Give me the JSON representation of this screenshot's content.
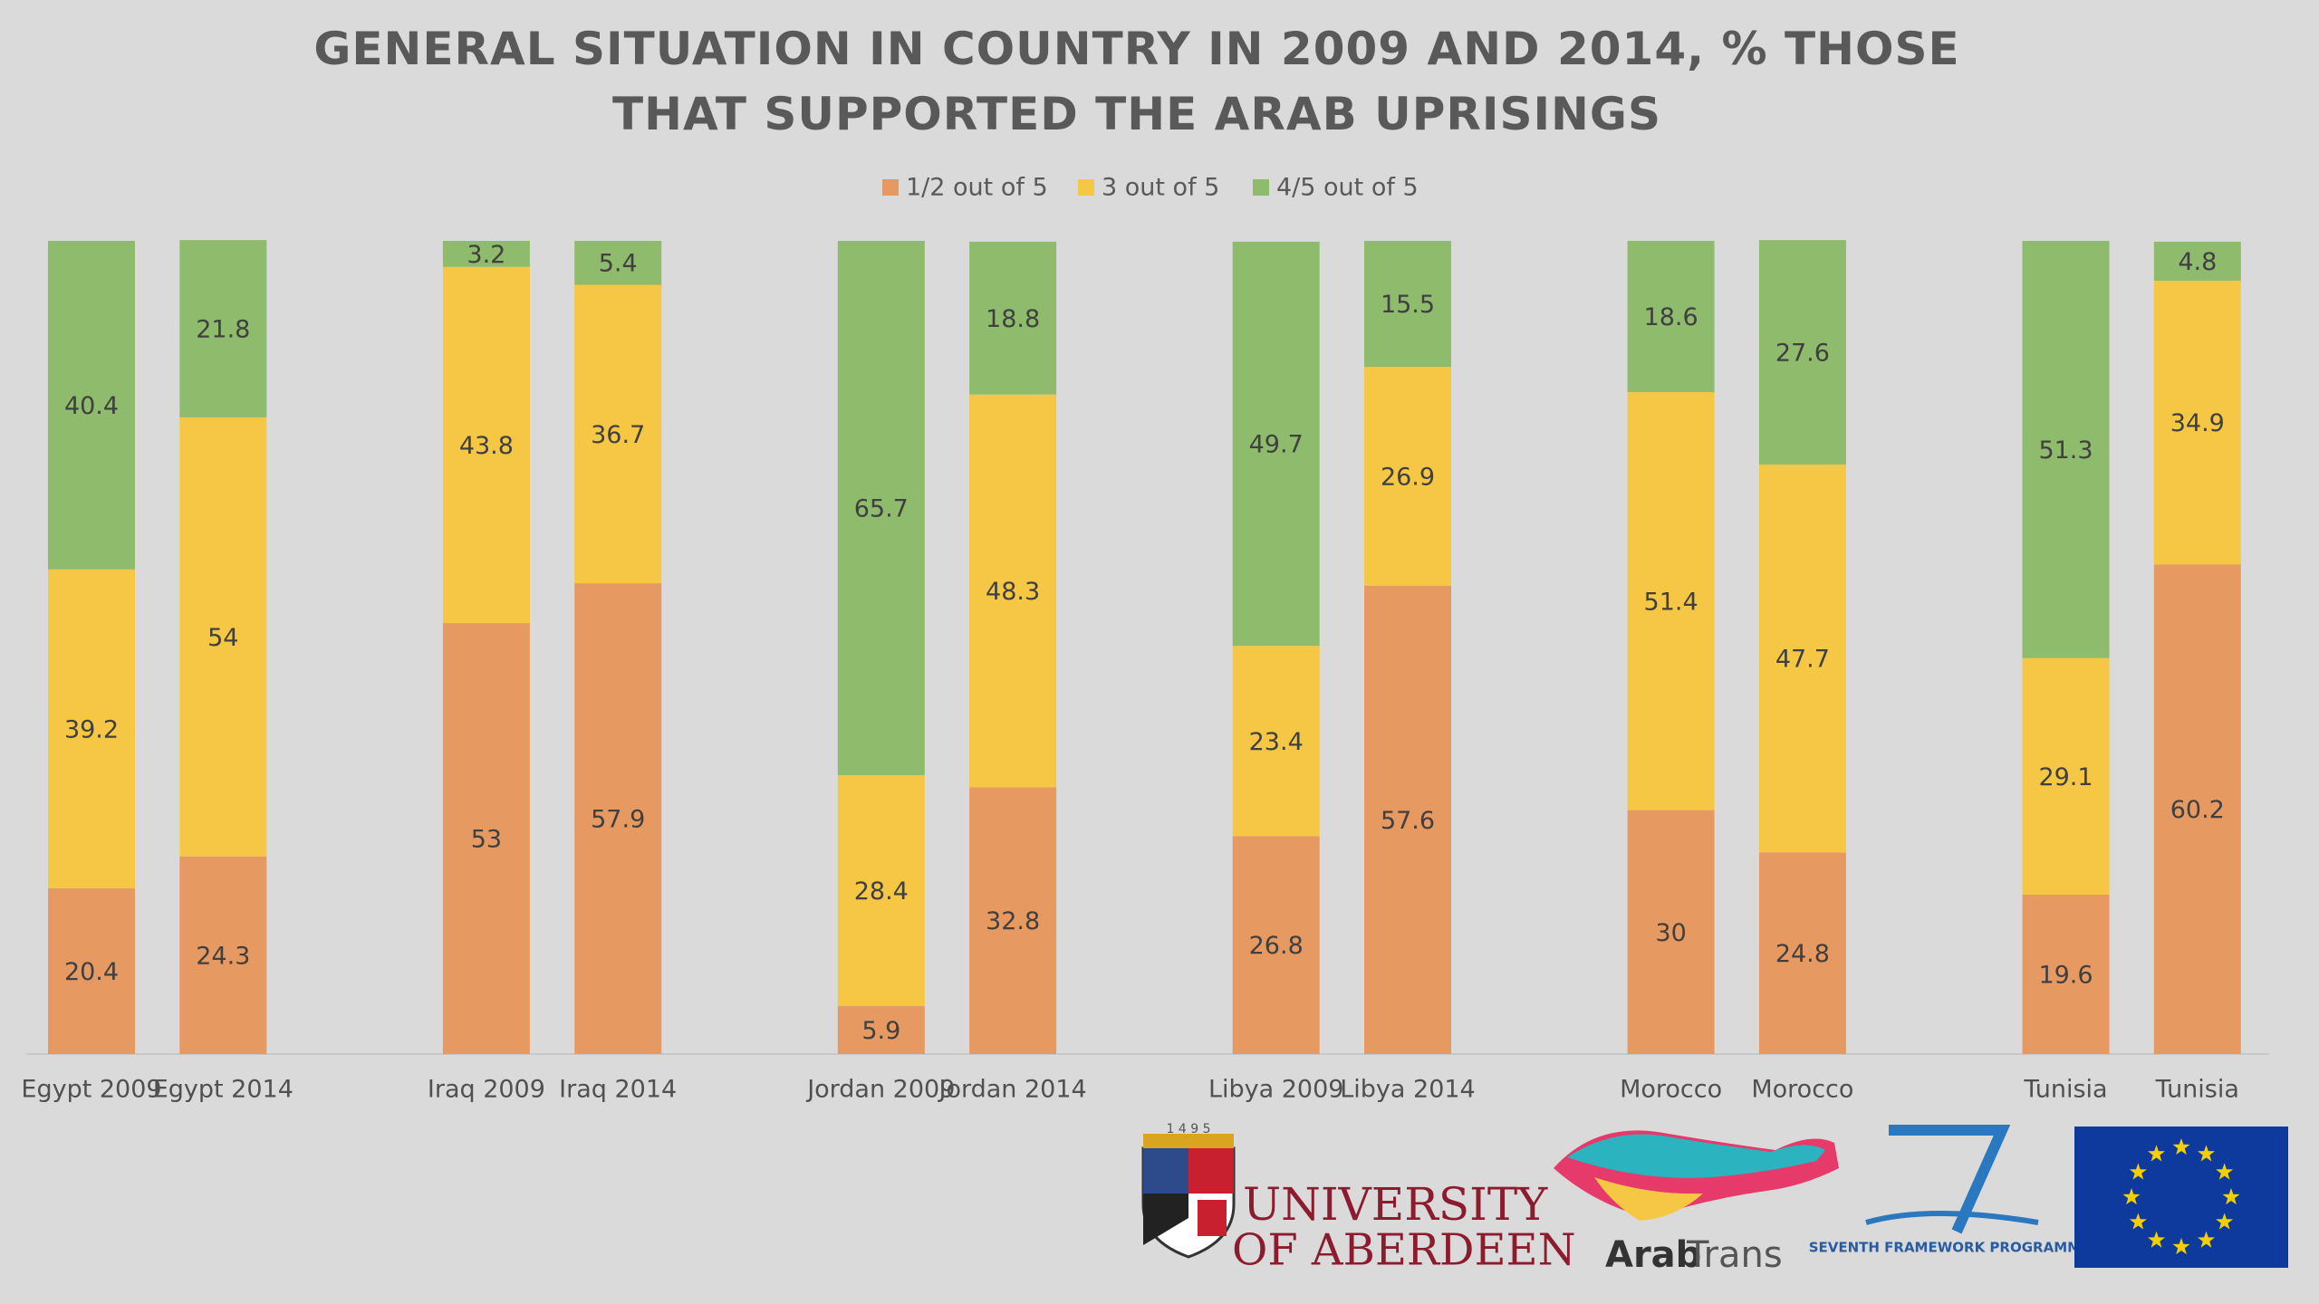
{
  "chart_data": {
    "type": "stacked_bar",
    "title": "GENERAL SITUATION IN COUNTRY IN 2009 AND 2014, % THOSE THAT SUPPORTED THE ARAB UPRISINGS",
    "categories": [
      "Egypt 2009",
      "Egypt 2014",
      null,
      "Iraq 2009",
      "Iraq 2014",
      null,
      "Jordan 2009",
      "Jordan 2014",
      null,
      "Libya 2009",
      "Libya 2014",
      null,
      "Morocco",
      "Morocco",
      null,
      "Tunisia",
      "Tunisia"
    ],
    "series": [
      {
        "name": "1/2 out of 5",
        "color": "#e69a62",
        "values": [
          20.4,
          24.3,
          null,
          53,
          57.9,
          null,
          5.9,
          32.8,
          null,
          26.8,
          57.6,
          null,
          30,
          24.8,
          null,
          19.6,
          60.2
        ]
      },
      {
        "name": "3 out of 5",
        "color": "#f5c745",
        "values": [
          39.2,
          54,
          null,
          43.8,
          36.7,
          null,
          28.4,
          48.3,
          null,
          23.4,
          26.9,
          null,
          51.4,
          47.7,
          null,
          29.1,
          34.9
        ]
      },
      {
        "name": "4/5 out of 5",
        "color": "#8fbb6c",
        "values": [
          40.4,
          21.8,
          null,
          3.2,
          5.4,
          null,
          65.7,
          18.8,
          null,
          49.7,
          15.5,
          null,
          18.6,
          27.6,
          null,
          51.3,
          4.8
        ]
      }
    ],
    "ylim": [
      0,
      100
    ],
    "legend": "top"
  },
  "logos": {
    "aberdeen_year": "1 4 9 5",
    "aberdeen_line1": "UNIVERSITY",
    "aberdeen_line2": "OF ABERDEEN",
    "arabtrans_bold": "Arab",
    "arabtrans_light": "Trans",
    "fp7": "SEVENTH FRAMEWORK PROGRAMME"
  }
}
